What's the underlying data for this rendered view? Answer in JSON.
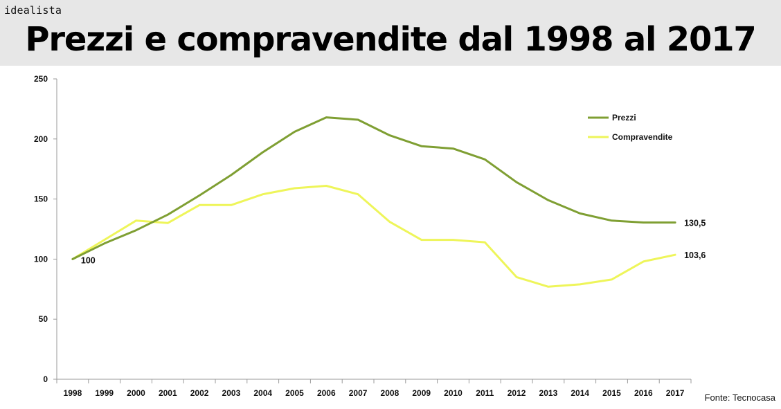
{
  "brand": "idealista",
  "source": "Fonte: Tecnocasa",
  "chart_data": {
    "type": "line",
    "title": "Prezzi e compravendite dal 1998 al 2017",
    "categories": [
      "1998",
      "1999",
      "2000",
      "2001",
      "2002",
      "2003",
      "2004",
      "2005",
      "2006",
      "2007",
      "2008",
      "2009",
      "2010",
      "2011",
      "2012",
      "2013",
      "2014",
      "2015",
      "2016",
      "2017"
    ],
    "ylim": [
      0,
      250
    ],
    "yticks": [
      0,
      50,
      100,
      150,
      200,
      250
    ],
    "xlabel": "",
    "ylabel": "",
    "grid": false,
    "legend_position": "top-right",
    "series": [
      {
        "name": "Prezzi",
        "color": "#7f9f33",
        "values": [
          100,
          113,
          124,
          137,
          153,
          170,
          189,
          206,
          218,
          216,
          203,
          194,
          192,
          183,
          164,
          149,
          138,
          132,
          130.5,
          130.5
        ],
        "end_label": "130,5"
      },
      {
        "name": "Compravendite",
        "color": "#eef55a",
        "values": [
          100,
          116,
          132,
          130,
          145,
          145,
          154,
          159,
          161,
          154,
          131,
          116,
          116,
          114,
          85,
          77,
          79,
          83,
          98,
          103.6
        ],
        "end_label": "103,6"
      }
    ],
    "annotations": [
      {
        "text": "100",
        "series": "Prezzi",
        "category": "1998"
      }
    ]
  }
}
